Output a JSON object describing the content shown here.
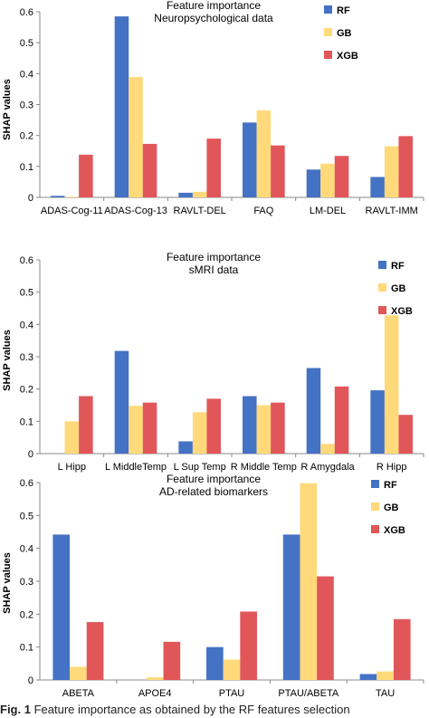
{
  "colors": {
    "RF": "#4472C4",
    "GB": "#FFD97A",
    "XGB": "#E15759"
  },
  "caption": {
    "label": "Fig. 1",
    "text": "Feature importance as obtained by the RF features selection"
  },
  "chart_data": [
    {
      "type": "bar",
      "title": "Feature importance",
      "subtitle": "Neuropsychological data",
      "xlabel": "",
      "ylabel": "SHAP values",
      "ylim": [
        0,
        0.6
      ],
      "yticks": [
        "0",
        "0.1",
        "0.2",
        "0.3",
        "0.4",
        "0.5",
        "0.6"
      ],
      "grid": false,
      "legend_position": "top-right",
      "categories": [
        "ADAS-Cog-11",
        "ADAS-Cog-13",
        "RAVLT-DEL",
        "FAQ",
        "LM-DEL",
        "RAVLT-IMM"
      ],
      "series": [
        {
          "name": "RF",
          "values": [
            0.005,
            0.585,
            0.015,
            0.242,
            0.09,
            0.066
          ]
        },
        {
          "name": "GB",
          "values": [
            0.002,
            0.389,
            0.018,
            0.281,
            0.109,
            0.165
          ]
        },
        {
          "name": "XGB",
          "values": [
            0.138,
            0.173,
            0.19,
            0.168,
            0.134,
            0.198
          ]
        }
      ]
    },
    {
      "type": "bar",
      "title": "Feature importance",
      "subtitle": "sMRI data",
      "xlabel": "",
      "ylabel": "SHAP values",
      "ylim": [
        0,
        0.6
      ],
      "yticks": [
        "0",
        "0.1",
        "0.2",
        "0.3",
        "0.4",
        "0.5",
        "0.6"
      ],
      "grid": false,
      "legend_position": "top-right",
      "categories": [
        "L Hipp",
        "L MiddleTemp",
        "L Sup Temp",
        "R Middle Temp",
        "R Amygdala",
        "R Hipp"
      ],
      "series": [
        {
          "name": "RF",
          "values": [
            0.0,
            0.318,
            0.038,
            0.178,
            0.265,
            0.196
          ]
        },
        {
          "name": "GB",
          "values": [
            0.1,
            0.148,
            0.128,
            0.15,
            0.03,
            0.428
          ]
        },
        {
          "name": "XGB",
          "values": [
            0.178,
            0.158,
            0.17,
            0.158,
            0.208,
            0.12
          ]
        }
      ]
    },
    {
      "type": "bar",
      "title": "Feature importance",
      "subtitle": "AD-related biomarkers",
      "xlabel": "",
      "ylabel": "SHAP values",
      "ylim": [
        0,
        0.6
      ],
      "yticks": [
        "0",
        "0.1",
        "0.2",
        "0.3",
        "0.4",
        "0.5",
        "0.6"
      ],
      "grid": false,
      "legend_position": "top-right",
      "categories": [
        "ABETA",
        "APOE4",
        "PTAU",
        "PTAU/ABETA",
        "TAU"
      ],
      "series": [
        {
          "name": "RF",
          "values": [
            0.442,
            0.0,
            0.1,
            0.442,
            0.018
          ]
        },
        {
          "name": "GB",
          "values": [
            0.04,
            0.008,
            0.062,
            0.598,
            0.026
          ]
        },
        {
          "name": "XGB",
          "values": [
            0.176,
            0.116,
            0.208,
            0.315,
            0.185
          ]
        }
      ]
    }
  ]
}
